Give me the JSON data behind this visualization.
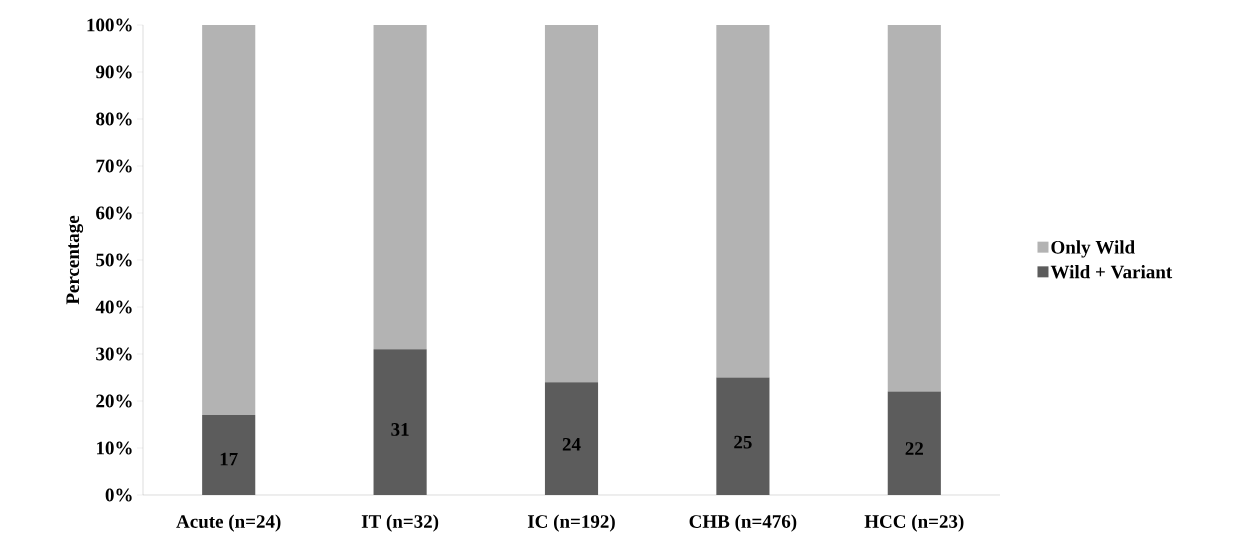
{
  "chart_data": {
    "type": "bar",
    "stacked": true,
    "ylabel": "Percentage",
    "categories": [
      "Acute (n=24)",
      "IT (n=32)",
      "IC (n=192)",
      "CHB (n=476)",
      "HCC (n=23)"
    ],
    "series": [
      {
        "name": "Wild + Variant",
        "color": "#5c5c5c",
        "values": [
          17,
          31,
          24,
          25,
          22
        ],
        "value_labels": [
          "17",
          "31",
          "24",
          "25",
          "22"
        ]
      },
      {
        "name": "Only Wild",
        "color": "#b3b3b3",
        "values": [
          83,
          69,
          76,
          75,
          78
        ]
      }
    ],
    "ylim": [
      0,
      100
    ],
    "yticks": [
      {
        "value": 0,
        "label": "0%"
      },
      {
        "value": 10,
        "label": "10%"
      },
      {
        "value": 20,
        "label": "20%"
      },
      {
        "value": 30,
        "label": "30%"
      },
      {
        "value": 40,
        "label": "40%"
      },
      {
        "value": 50,
        "label": "50%"
      },
      {
        "value": 60,
        "label": "60%"
      },
      {
        "value": 70,
        "label": "70%"
      },
      {
        "value": 80,
        "label": "80%"
      },
      {
        "value": 90,
        "label": "90%"
      },
      {
        "value": 100,
        "label": "100%"
      }
    ],
    "legend": "right"
  }
}
